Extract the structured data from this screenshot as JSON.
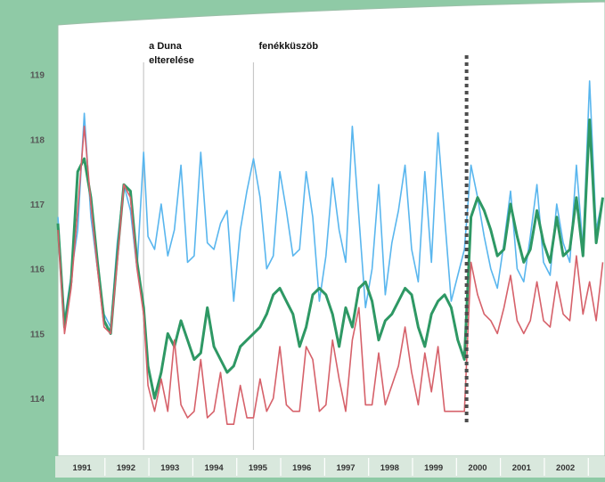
{
  "chart_data": {
    "type": "line",
    "title": "",
    "xlabel": "",
    "ylabel": "",
    "ylim": [
      113.3,
      119.6
    ],
    "xlim": [
      1990.55,
      2003.0
    ],
    "yticks": [
      "119",
      "118",
      "117",
      "116",
      "115",
      "114"
    ],
    "year_labels": [
      "1991",
      "1992",
      "1993",
      "1994",
      "1995",
      "1996",
      "1997",
      "1998",
      "1999",
      "2000",
      "2001",
      "2002"
    ],
    "grid": false,
    "legend": "none",
    "annotations": [
      {
        "text_lines": [
          "a Duna",
          "elterelése"
        ],
        "x": 1992.5
      },
      {
        "text_lines": [
          "fenékküszöb"
        ],
        "x": 1995.0
      }
    ],
    "separator_x": 1999.85,
    "series": [
      {
        "color": "#59b6ee",
        "x": [
          1990.55,
          1990.7,
          1990.85,
          1991.0,
          1991.15,
          1991.3,
          1991.45,
          1991.6,
          1991.75,
          1991.9,
          1992.05,
          1992.2,
          1992.35,
          1992.5,
          1992.6,
          1992.75,
          1992.9,
          1993.05,
          1993.2,
          1993.35,
          1993.5,
          1993.65,
          1993.8,
          1993.95,
          1994.1,
          1994.25,
          1994.4,
          1994.55,
          1994.7,
          1994.85,
          1995.0,
          1995.15,
          1995.3,
          1995.45,
          1995.6,
          1995.75,
          1995.9,
          1996.05,
          1996.2,
          1996.35,
          1996.5,
          1996.65,
          1996.8,
          1996.95,
          1997.1,
          1997.25,
          1997.4,
          1997.55,
          1997.7,
          1997.85,
          1998.0,
          1998.15,
          1998.3,
          1998.45,
          1998.6,
          1998.75,
          1998.9,
          1999.05,
          1999.2,
          1999.35,
          1999.5,
          1999.65,
          1999.8,
          1999.95,
          2000.1,
          2000.25,
          2000.4,
          2000.55,
          2000.7,
          2000.85,
          2001.0,
          2001.15,
          2001.3,
          2001.45,
          2001.6,
          2001.75,
          2001.9,
          2002.05,
          2002.2,
          2002.35,
          2002.5,
          2002.65,
          2002.8,
          2002.95
        ],
        "y": [
          116.8,
          115.2,
          115.9,
          116.6,
          118.4,
          116.8,
          116.0,
          115.3,
          115.1,
          116.4,
          117.3,
          116.9,
          116.0,
          117.8,
          116.5,
          116.3,
          117.0,
          116.2,
          116.6,
          117.6,
          116.1,
          116.2,
          117.8,
          116.4,
          116.3,
          116.7,
          116.9,
          115.5,
          116.6,
          117.2,
          117.7,
          117.1,
          116.0,
          116.2,
          117.5,
          116.9,
          116.2,
          116.3,
          117.5,
          116.8,
          115.5,
          116.2,
          117.4,
          116.6,
          116.1,
          118.2,
          116.8,
          115.4,
          116.0,
          117.3,
          115.6,
          116.4,
          116.9,
          117.6,
          116.3,
          115.8,
          117.5,
          116.1,
          118.1,
          116.8,
          115.5,
          115.9,
          116.3,
          117.6,
          117.1,
          116.5,
          116.0,
          115.7,
          116.4,
          117.2,
          116.0,
          115.8,
          116.5,
          117.3,
          116.1,
          115.9,
          117.0,
          116.4,
          116.1,
          117.6,
          116.3,
          118.9,
          116.6,
          117.1
        ]
      },
      {
        "color": "#2e9864",
        "x": [
          1990.55,
          1990.7,
          1990.85,
          1991.0,
          1991.15,
          1991.3,
          1991.45,
          1991.6,
          1991.75,
          1991.9,
          1992.05,
          1992.2,
          1992.35,
          1992.5,
          1992.6,
          1992.75,
          1992.9,
          1993.05,
          1993.2,
          1993.35,
          1993.5,
          1993.65,
          1993.8,
          1993.95,
          1994.1,
          1994.25,
          1994.4,
          1994.55,
          1994.7,
          1994.85,
          1995.0,
          1995.15,
          1995.3,
          1995.45,
          1995.6,
          1995.75,
          1995.9,
          1996.05,
          1996.2,
          1996.35,
          1996.5,
          1996.65,
          1996.8,
          1996.95,
          1997.1,
          1997.25,
          1997.4,
          1997.55,
          1997.7,
          1997.85,
          1998.0,
          1998.15,
          1998.3,
          1998.45,
          1998.6,
          1998.75,
          1998.9,
          1999.05,
          1999.2,
          1999.35,
          1999.5,
          1999.65,
          1999.8,
          1999.95,
          2000.1,
          2000.25,
          2000.4,
          2000.55,
          2000.7,
          2000.85,
          2001.0,
          2001.15,
          2001.3,
          2001.45,
          2001.6,
          2001.75,
          2001.9,
          2002.05,
          2002.2,
          2002.35,
          2002.5,
          2002.65,
          2002.8,
          2002.95
        ],
        "y": [
          116.7,
          115.1,
          115.8,
          117.5,
          117.7,
          117.1,
          116.1,
          115.2,
          115.0,
          116.2,
          117.3,
          117.2,
          116.1,
          115.4,
          114.5,
          114.0,
          114.4,
          115.0,
          114.8,
          115.2,
          114.9,
          114.6,
          114.7,
          115.4,
          114.8,
          114.6,
          114.4,
          114.5,
          114.8,
          114.9,
          115.0,
          115.1,
          115.3,
          115.6,
          115.7,
          115.5,
          115.3,
          114.8,
          115.1,
          115.6,
          115.7,
          115.6,
          115.3,
          114.8,
          115.4,
          115.1,
          115.7,
          115.8,
          115.5,
          114.9,
          115.2,
          115.3,
          115.5,
          115.7,
          115.6,
          115.1,
          114.8,
          115.3,
          115.5,
          115.6,
          115.4,
          114.9,
          114.6,
          116.8,
          117.1,
          116.9,
          116.6,
          116.2,
          116.3,
          117.0,
          116.5,
          116.1,
          116.3,
          116.9,
          116.4,
          116.1,
          116.8,
          116.2,
          116.3,
          117.1,
          116.2,
          118.3,
          116.4,
          117.1
        ]
      },
      {
        "color": "#d6616a",
        "x": [
          1990.55,
          1990.7,
          1990.85,
          1991.0,
          1991.15,
          1991.3,
          1991.45,
          1991.6,
          1991.75,
          1991.9,
          1992.05,
          1992.2,
          1992.35,
          1992.5,
          1992.6,
          1992.75,
          1992.9,
          1993.05,
          1993.2,
          1993.35,
          1993.5,
          1993.65,
          1993.8,
          1993.95,
          1994.1,
          1994.25,
          1994.4,
          1994.55,
          1994.7,
          1994.85,
          1995.0,
          1995.15,
          1995.3,
          1995.45,
          1995.6,
          1995.75,
          1995.9,
          1996.05,
          1996.2,
          1996.35,
          1996.5,
          1996.65,
          1996.8,
          1996.95,
          1997.1,
          1997.25,
          1997.4,
          1997.55,
          1997.7,
          1997.85,
          1998.0,
          1998.15,
          1998.3,
          1998.45,
          1998.6,
          1998.75,
          1998.9,
          1999.05,
          1999.2,
          1999.35,
          1999.5,
          1999.65,
          1999.8,
          1999.95,
          2000.1,
          2000.25,
          2000.4,
          2000.55,
          2000.7,
          2000.85,
          2001.0,
          2001.15,
          2001.3,
          2001.45,
          2001.6,
          2001.75,
          2001.9,
          2002.05,
          2002.2,
          2002.35,
          2002.5,
          2002.65,
          2002.8,
          2002.95
        ],
        "y": [
          116.6,
          115.0,
          115.7,
          116.9,
          118.2,
          117.0,
          116.0,
          115.1,
          115.0,
          116.1,
          117.3,
          117.1,
          116.0,
          115.3,
          114.2,
          113.8,
          114.3,
          113.8,
          114.9,
          113.9,
          113.7,
          113.8,
          114.6,
          113.7,
          113.8,
          114.4,
          113.6,
          113.6,
          114.2,
          113.7,
          113.7,
          114.3,
          113.8,
          114.0,
          114.8,
          113.9,
          113.8,
          113.8,
          114.8,
          114.6,
          113.8,
          113.9,
          114.9,
          114.3,
          113.8,
          114.9,
          115.4,
          113.9,
          113.9,
          114.7,
          113.9,
          114.2,
          114.5,
          115.1,
          114.4,
          113.9,
          114.7,
          114.1,
          114.8,
          113.8,
          113.8,
          113.8,
          113.8,
          116.1,
          115.6,
          115.3,
          115.2,
          115.0,
          115.4,
          115.9,
          115.2,
          115.0,
          115.2,
          115.8,
          115.2,
          115.1,
          115.8,
          115.3,
          115.2,
          116.2,
          115.3,
          115.8,
          115.2,
          116.1
        ]
      }
    ]
  }
}
